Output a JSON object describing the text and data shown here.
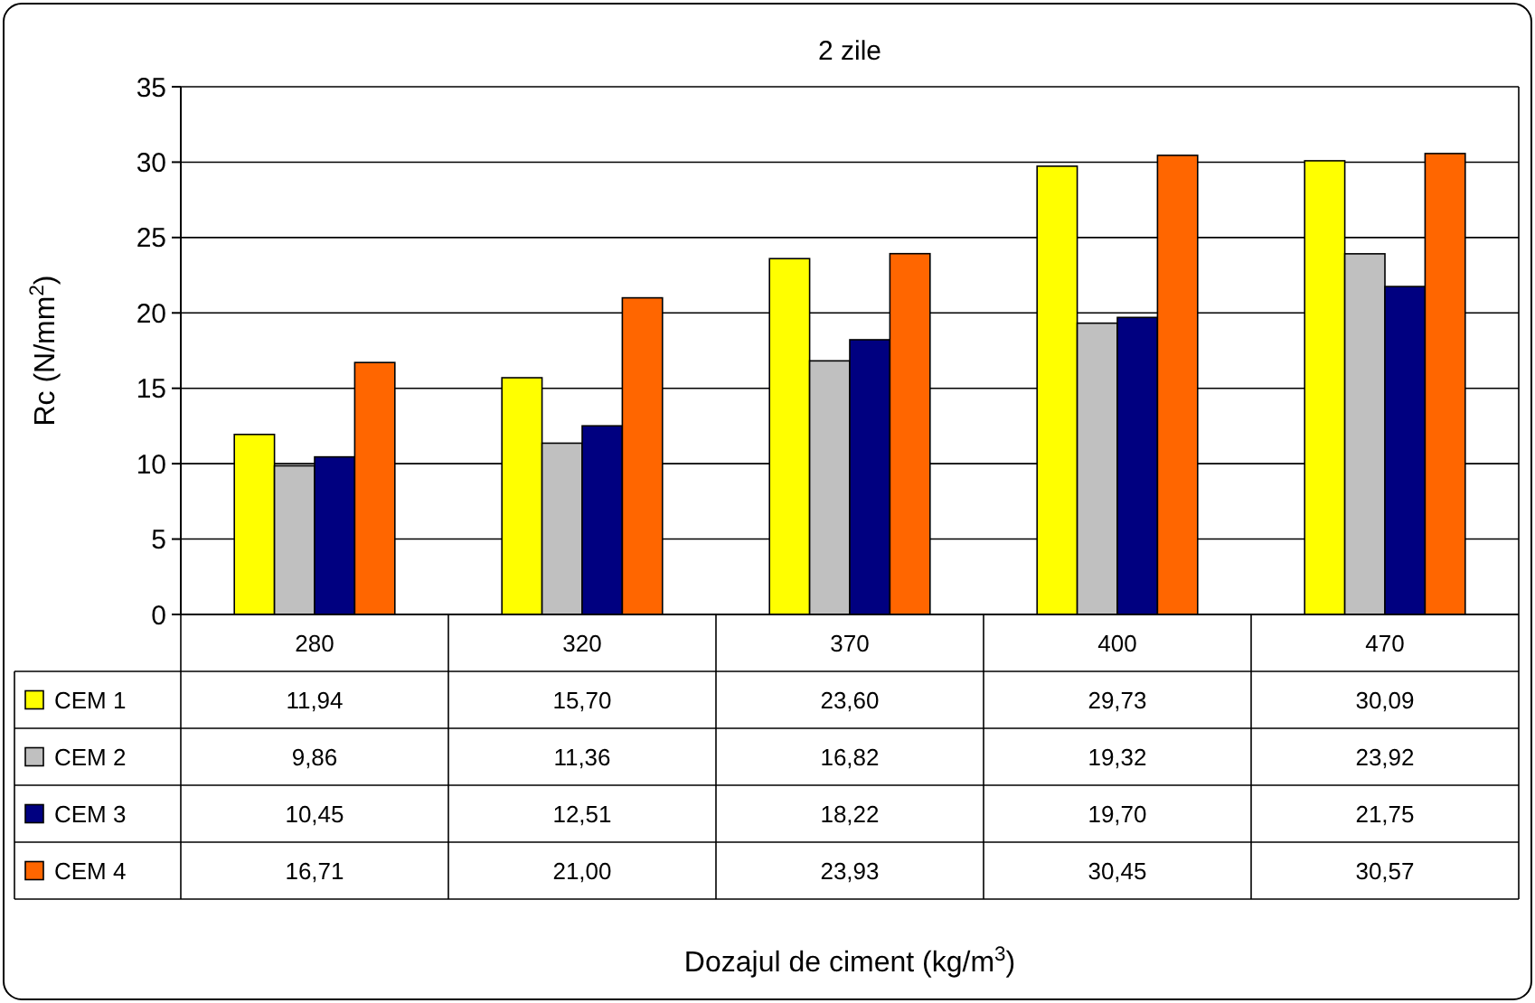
{
  "chart_data": {
    "type": "bar",
    "title": "2 zile",
    "annotations": [
      "Dozajul de ciment (kg/m$^{3}$)"
    ],
    "ylabel": "Rc (N/mm$^{2}$)",
    "categories": [
      "280",
      "320",
      "370",
      "400",
      "470"
    ],
    "series": [
      {
        "name": "CEM 1",
        "color": "#ffff00",
        "values": [
          11.94,
          15.7,
          23.6,
          29.73,
          30.09
        ],
        "value_labels": [
          "11,94",
          "15,70",
          "23,60",
          "29,73",
          "30,09"
        ]
      },
      {
        "name": "CEM 2",
        "color": "#c0c0c0",
        "values": [
          9.86,
          11.36,
          16.82,
          19.32,
          23.92
        ],
        "value_labels": [
          "9,86",
          "11,36",
          "16,82",
          "19,32",
          "23,92"
        ]
      },
      {
        "name": "CEM 3",
        "color": "#000080",
        "values": [
          10.45,
          12.51,
          18.22,
          19.7,
          21.75
        ],
        "value_labels": [
          "10,45",
          "12,51",
          "18,22",
          "19,70",
          "21,75"
        ]
      },
      {
        "name": "CEM 4",
        "color": "#ff6600",
        "values": [
          16.71,
          21.0,
          23.93,
          30.45,
          30.57
        ],
        "value_labels": [
          "16,71",
          "21,00",
          "23,93",
          "30,45",
          "30,57"
        ]
      }
    ],
    "ylim": [
      0,
      35
    ],
    "yticks": [
      0,
      5,
      10,
      15,
      20,
      25,
      30,
      35
    ],
    "grid": "y",
    "legend": "bottom"
  }
}
